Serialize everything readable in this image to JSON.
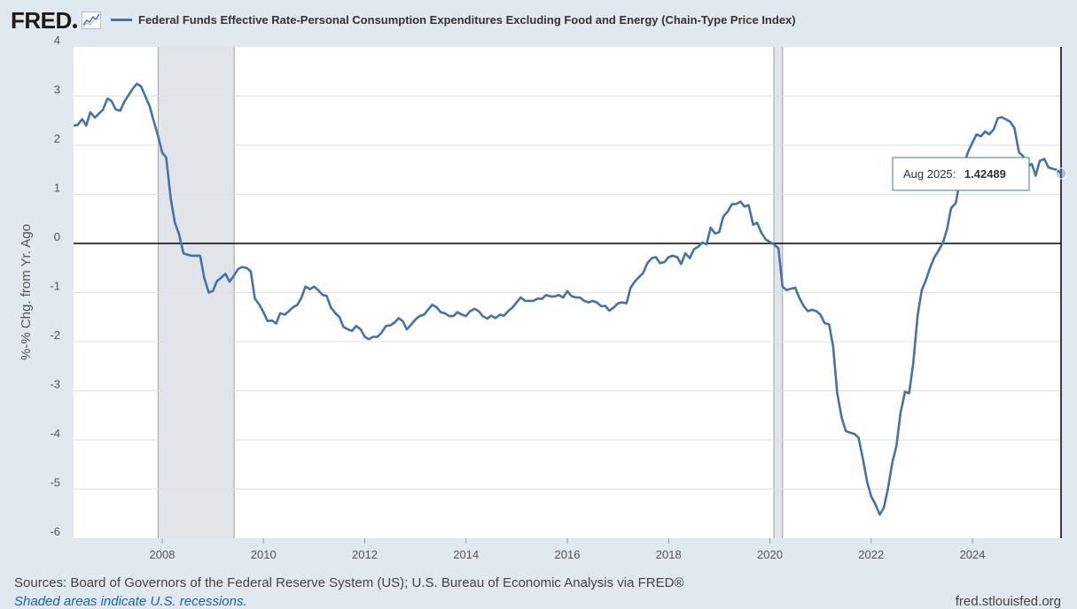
{
  "header": {
    "logo_text": "FRED",
    "series_title": "Federal Funds Effective Rate-Personal Consumption Expenditures Excluding Food and Energy (Chain-Type Price Index)"
  },
  "footer": {
    "sources": "Sources: Board of Governors of the Federal Reserve System (US); U.S. Bureau of Economic Analysis via FRED®",
    "recession_note": "Shaded areas indicate U.S. recessions.",
    "site_url": "fred.stlouisfed.org"
  },
  "tooltip": {
    "date": "Aug 2025:",
    "value": "1.42489"
  },
  "colors": {
    "series": "#4572a7",
    "background": "#e1e9f0",
    "plot_background": "#ffffff",
    "recession_shade": "#e1e5ea",
    "link": "#1a62b8"
  },
  "chart_data": {
    "type": "line",
    "title": "Federal Funds Effective Rate-Personal Consumption Expenditures Excluding Food and Energy (Chain-Type Price Index)",
    "xlabel": "",
    "ylabel": "%-% Chg. from Yr. Ago",
    "xlim": [
      2006.25,
      2025.75
    ],
    "ylim": [
      -6,
      4
    ],
    "yticks": [
      4,
      3,
      2,
      1,
      0,
      -1,
      -2,
      -3,
      -4,
      -5,
      -6
    ],
    "xticks": [
      2008,
      2010,
      2012,
      2014,
      2016,
      2018,
      2020,
      2022,
      2024
    ],
    "recessions": [
      [
        2007.92,
        2009.42
      ],
      [
        2020.08,
        2020.25
      ]
    ],
    "series": [
      {
        "name": "Federal Funds Effective Rate-Personal Consumption Expenditures Excluding Food and Energy (Chain-Type Price Index)",
        "points": [
          [
            2006.25,
            2.4
          ],
          [
            2006.33,
            2.41
          ],
          [
            2006.42,
            2.53
          ],
          [
            2006.5,
            2.4
          ],
          [
            2006.58,
            2.67
          ],
          [
            2006.67,
            2.56
          ],
          [
            2006.83,
            2.72
          ],
          [
            2006.92,
            2.95
          ],
          [
            2007.0,
            2.9
          ],
          [
            2007.08,
            2.73
          ],
          [
            2007.17,
            2.7
          ],
          [
            2007.25,
            2.88
          ],
          [
            2007.42,
            3.15
          ],
          [
            2007.5,
            3.25
          ],
          [
            2007.58,
            3.2
          ],
          [
            2007.75,
            2.8
          ],
          [
            2007.83,
            2.5
          ],
          [
            2007.92,
            2.18
          ],
          [
            2008.0,
            1.85
          ],
          [
            2008.08,
            1.75
          ],
          [
            2008.17,
            0.9
          ],
          [
            2008.25,
            0.42
          ],
          [
            2008.33,
            0.2
          ],
          [
            2008.42,
            -0.2
          ],
          [
            2008.5,
            -0.23
          ],
          [
            2008.58,
            -0.25
          ],
          [
            2008.75,
            -0.25
          ],
          [
            2008.83,
            -0.7
          ],
          [
            2008.92,
            -1.0
          ],
          [
            2009.0,
            -0.97
          ],
          [
            2009.08,
            -0.77
          ],
          [
            2009.25,
            -0.62
          ],
          [
            2009.33,
            -0.78
          ],
          [
            2009.42,
            -0.65
          ],
          [
            2009.5,
            -0.52
          ],
          [
            2009.58,
            -0.48
          ],
          [
            2009.67,
            -0.5
          ],
          [
            2009.75,
            -0.57
          ],
          [
            2009.83,
            -1.12
          ],
          [
            2009.92,
            -1.25
          ],
          [
            2010.0,
            -1.4
          ],
          [
            2010.08,
            -1.58
          ],
          [
            2010.17,
            -1.57
          ],
          [
            2010.25,
            -1.63
          ],
          [
            2010.33,
            -1.42
          ],
          [
            2010.42,
            -1.45
          ],
          [
            2010.5,
            -1.38
          ],
          [
            2010.58,
            -1.3
          ],
          [
            2010.67,
            -1.25
          ],
          [
            2010.75,
            -1.1
          ],
          [
            2010.83,
            -0.88
          ],
          [
            2010.92,
            -0.93
          ],
          [
            2011.0,
            -0.88
          ],
          [
            2011.08,
            -0.95
          ],
          [
            2011.17,
            -1.05
          ],
          [
            2011.25,
            -1.07
          ],
          [
            2011.33,
            -1.3
          ],
          [
            2011.42,
            -1.42
          ],
          [
            2011.5,
            -1.5
          ],
          [
            2011.58,
            -1.7
          ],
          [
            2011.67,
            -1.75
          ],
          [
            2011.75,
            -1.78
          ],
          [
            2011.83,
            -1.68
          ],
          [
            2011.92,
            -1.75
          ],
          [
            2012.0,
            -1.9
          ],
          [
            2012.08,
            -1.95
          ],
          [
            2012.17,
            -1.9
          ],
          [
            2012.25,
            -1.9
          ],
          [
            2012.33,
            -1.82
          ],
          [
            2012.42,
            -1.68
          ],
          [
            2012.5,
            -1.67
          ],
          [
            2012.58,
            -1.62
          ],
          [
            2012.67,
            -1.52
          ],
          [
            2012.75,
            -1.58
          ],
          [
            2012.83,
            -1.75
          ],
          [
            2012.92,
            -1.65
          ],
          [
            2013.0,
            -1.55
          ],
          [
            2013.08,
            -1.48
          ],
          [
            2013.17,
            -1.45
          ],
          [
            2013.25,
            -1.35
          ],
          [
            2013.33,
            -1.25
          ],
          [
            2013.42,
            -1.3
          ],
          [
            2013.5,
            -1.4
          ],
          [
            2013.58,
            -1.42
          ],
          [
            2013.67,
            -1.48
          ],
          [
            2013.75,
            -1.48
          ],
          [
            2013.83,
            -1.4
          ],
          [
            2013.92,
            -1.45
          ],
          [
            2014.0,
            -1.48
          ],
          [
            2014.08,
            -1.38
          ],
          [
            2014.17,
            -1.33
          ],
          [
            2014.25,
            -1.38
          ],
          [
            2014.33,
            -1.48
          ],
          [
            2014.42,
            -1.53
          ],
          [
            2014.5,
            -1.47
          ],
          [
            2014.58,
            -1.52
          ],
          [
            2014.67,
            -1.45
          ],
          [
            2014.75,
            -1.47
          ],
          [
            2014.83,
            -1.38
          ],
          [
            2014.92,
            -1.3
          ],
          [
            2015.0,
            -1.2
          ],
          [
            2015.08,
            -1.1
          ],
          [
            2015.17,
            -1.17
          ],
          [
            2015.25,
            -1.17
          ],
          [
            2015.33,
            -1.17
          ],
          [
            2015.42,
            -1.12
          ],
          [
            2015.5,
            -1.13
          ],
          [
            2015.58,
            -1.05
          ],
          [
            2015.67,
            -1.08
          ],
          [
            2015.75,
            -1.08
          ],
          [
            2015.83,
            -1.05
          ],
          [
            2015.92,
            -1.1
          ],
          [
            2016.0,
            -0.97
          ],
          [
            2016.08,
            -1.07
          ],
          [
            2016.17,
            -1.1
          ],
          [
            2016.25,
            -1.1
          ],
          [
            2016.33,
            -1.17
          ],
          [
            2016.42,
            -1.2
          ],
          [
            2016.5,
            -1.17
          ],
          [
            2016.58,
            -1.2
          ],
          [
            2016.67,
            -1.28
          ],
          [
            2016.75,
            -1.27
          ],
          [
            2016.83,
            -1.37
          ],
          [
            2016.92,
            -1.3
          ],
          [
            2017.0,
            -1.22
          ],
          [
            2017.08,
            -1.2
          ],
          [
            2017.17,
            -1.22
          ],
          [
            2017.25,
            -0.9
          ],
          [
            2017.33,
            -0.78
          ],
          [
            2017.42,
            -0.68
          ],
          [
            2017.5,
            -0.6
          ],
          [
            2017.58,
            -0.4
          ],
          [
            2017.67,
            -0.3
          ],
          [
            2017.75,
            -0.28
          ],
          [
            2017.83,
            -0.4
          ],
          [
            2017.92,
            -0.38
          ],
          [
            2018.0,
            -0.28
          ],
          [
            2018.08,
            -0.25
          ],
          [
            2018.17,
            -0.28
          ],
          [
            2018.25,
            -0.42
          ],
          [
            2018.33,
            -0.2
          ],
          [
            2018.42,
            -0.3
          ],
          [
            2018.5,
            -0.12
          ],
          [
            2018.58,
            -0.07
          ],
          [
            2018.67,
            0.02
          ],
          [
            2018.75,
            -0.02
          ],
          [
            2018.83,
            0.32
          ],
          [
            2018.92,
            0.2
          ],
          [
            2019.0,
            0.23
          ],
          [
            2019.08,
            0.55
          ],
          [
            2019.17,
            0.65
          ],
          [
            2019.25,
            0.8
          ],
          [
            2019.33,
            0.8
          ],
          [
            2019.42,
            0.85
          ],
          [
            2019.5,
            0.75
          ],
          [
            2019.58,
            0.78
          ],
          [
            2019.67,
            0.38
          ],
          [
            2019.75,
            0.42
          ],
          [
            2019.83,
            0.22
          ],
          [
            2019.92,
            0.08
          ],
          [
            2020.0,
            0.03
          ],
          [
            2020.08,
            -0.02
          ],
          [
            2020.17,
            -0.1
          ],
          [
            2020.25,
            -0.88
          ],
          [
            2020.33,
            -0.95
          ],
          [
            2020.42,
            -0.92
          ],
          [
            2020.5,
            -0.9
          ],
          [
            2020.58,
            -1.1
          ],
          [
            2020.67,
            -1.28
          ],
          [
            2020.75,
            -1.38
          ],
          [
            2020.83,
            -1.35
          ],
          [
            2020.92,
            -1.38
          ],
          [
            2021.0,
            -1.45
          ],
          [
            2021.08,
            -1.62
          ],
          [
            2021.17,
            -1.65
          ],
          [
            2021.25,
            -2.1
          ],
          [
            2021.33,
            -3.05
          ],
          [
            2021.42,
            -3.55
          ],
          [
            2021.5,
            -3.82
          ],
          [
            2021.58,
            -3.85
          ],
          [
            2021.67,
            -3.88
          ],
          [
            2021.75,
            -3.95
          ],
          [
            2021.83,
            -4.35
          ],
          [
            2021.92,
            -4.85
          ],
          [
            2022.0,
            -5.15
          ],
          [
            2022.08,
            -5.3
          ],
          [
            2022.17,
            -5.52
          ],
          [
            2022.25,
            -5.38
          ],
          [
            2022.33,
            -5.0
          ],
          [
            2022.42,
            -4.45
          ],
          [
            2022.5,
            -4.12
          ],
          [
            2022.58,
            -3.45
          ],
          [
            2022.67,
            -3.02
          ],
          [
            2022.75,
            -3.05
          ],
          [
            2022.83,
            -2.45
          ],
          [
            2022.92,
            -1.45
          ],
          [
            2023.0,
            -0.95
          ],
          [
            2023.08,
            -0.75
          ],
          [
            2023.17,
            -0.48
          ],
          [
            2023.25,
            -0.28
          ],
          [
            2023.33,
            -0.15
          ],
          [
            2023.42,
            0.02
          ],
          [
            2023.5,
            0.3
          ],
          [
            2023.58,
            0.72
          ],
          [
            2023.67,
            0.82
          ],
          [
            2023.75,
            1.25
          ],
          [
            2023.83,
            1.6
          ],
          [
            2023.92,
            1.88
          ],
          [
            2024.0,
            2.05
          ],
          [
            2024.08,
            2.22
          ],
          [
            2024.17,
            2.18
          ],
          [
            2024.25,
            2.28
          ],
          [
            2024.33,
            2.22
          ],
          [
            2024.42,
            2.32
          ],
          [
            2024.5,
            2.55
          ],
          [
            2024.58,
            2.57
          ],
          [
            2024.67,
            2.52
          ],
          [
            2024.75,
            2.47
          ],
          [
            2024.83,
            2.35
          ],
          [
            2024.92,
            1.85
          ],
          [
            2025.0,
            1.78
          ],
          [
            2025.08,
            1.55
          ],
          [
            2025.17,
            1.62
          ],
          [
            2025.25,
            1.38
          ],
          [
            2025.33,
            1.68
          ],
          [
            2025.42,
            1.72
          ],
          [
            2025.5,
            1.55
          ],
          [
            2025.58,
            1.52
          ],
          [
            2025.67,
            1.5
          ],
          [
            2025.75,
            1.42489
          ]
        ]
      }
    ]
  }
}
